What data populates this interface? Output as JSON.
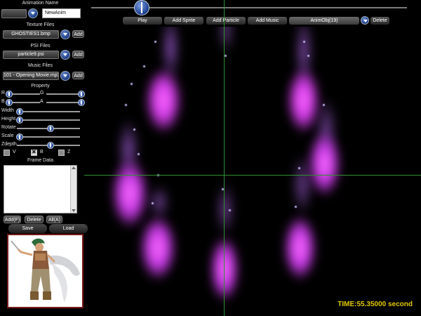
{
  "left_panel": {
    "animation_name_label": "Animation Name",
    "animation_name_value": "NewAnim",
    "texture_files_label": "Texture Files",
    "texture_file_value": "GHOSTIES1.bmp",
    "texture_add_label": "Add",
    "psi_files_label": "PSI Files",
    "psi_file_value": "particle9.psi",
    "psi_add_label": "Add",
    "music_files_label": "Music Files",
    "music_file_value": "101 - Opening Movie.mp3",
    "music_add_label": "Add",
    "property_label": "Property",
    "color": {
      "r_label": "R",
      "g_label": "G",
      "b_label": "B",
      "a_label": "A",
      "r_level": 0.0,
      "g_level": 1.0,
      "b_level": 0.0,
      "a_level": 1.0
    },
    "sliders": [
      {
        "label": "Width",
        "level": 0.0
      },
      {
        "label": "Height",
        "level": 0.0
      },
      {
        "label": "Rotate",
        "level": 0.5
      },
      {
        "label": "Scale",
        "level": 0.0
      },
      {
        "label": "Zdepth",
        "level": 0.5
      }
    ],
    "flip_labels": [
      "V",
      "B",
      "Z"
    ],
    "flip_checked": [
      false,
      true,
      false
    ],
    "frame_data_label": "Frame Data",
    "frame_buttons": [
      "Add(F)",
      "Delete",
      "All(A)"
    ],
    "save_label": "Save",
    "load_label": "Load"
  },
  "toolbar": {
    "play_label": "Play",
    "add_sprite_label": "Add Sprite",
    "add_particle_label": "Add Particle",
    "add_music_label": "Add Music",
    "anim_object_value": "AnimObj(19)",
    "delete_label": "Delete",
    "timeline_level": 0.07
  },
  "status": {
    "time_text": "TIME:55.35000 second"
  },
  "colors": {
    "background": "#000000",
    "crosshair": "#2f8f2f",
    "particle": "#d040ff",
    "time_text": "#e0c800",
    "knob": "#1a3d8e"
  }
}
